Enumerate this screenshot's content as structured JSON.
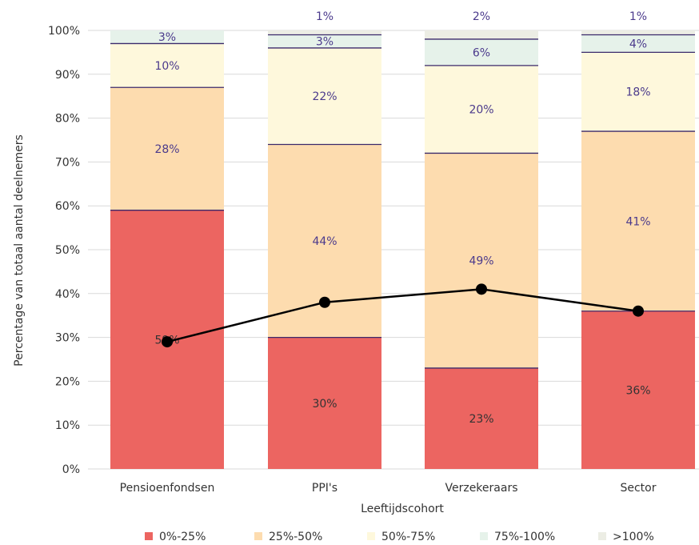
{
  "chart_data": {
    "type": "bar",
    "stacked": true,
    "title": "",
    "xlabel": "Leeftijdscohort",
    "ylabel": "Percentage van totaal aantal deelnemers",
    "ylim": [
      0,
      100
    ],
    "yticks": [
      "0%",
      "10%",
      "20%",
      "30%",
      "40%",
      "50%",
      "60%",
      "70%",
      "80%",
      "90%",
      "100%"
    ],
    "categories": [
      "Pensioenfondsen",
      "PPI's",
      "Verzekeraars",
      "Sector"
    ],
    "series": [
      {
        "name": "0%-25%",
        "color": "#ec6561",
        "values": [
          59,
          30,
          23,
          36
        ],
        "labels": [
          "59%",
          "30%",
          "23%",
          "36%"
        ]
      },
      {
        "name": "25%-50%",
        "color": "#fddcaf",
        "values": [
          28,
          44,
          49,
          41
        ],
        "labels": [
          "28%",
          "44%",
          "49%",
          "41%"
        ]
      },
      {
        "name": "50%-75%",
        "color": "#fef8dc",
        "values": [
          10,
          22,
          20,
          18
        ],
        "labels": [
          "10%",
          "22%",
          "20%",
          "18%"
        ]
      },
      {
        "name": "75%-100%",
        "color": "#e6f2ea",
        "values": [
          3,
          3,
          6,
          4
        ],
        "labels": [
          "3%",
          "3%",
          "6%",
          "4%"
        ]
      },
      {
        "name": ">100%",
        "color": "#ecede4",
        "values": [
          0,
          1,
          2,
          1
        ],
        "labels": [
          "",
          "1%",
          "2%",
          "1%"
        ]
      }
    ],
    "line": {
      "values": [
        29,
        38,
        41,
        36
      ],
      "color": "#000000"
    },
    "grid": true,
    "legend_position": "bottom"
  }
}
